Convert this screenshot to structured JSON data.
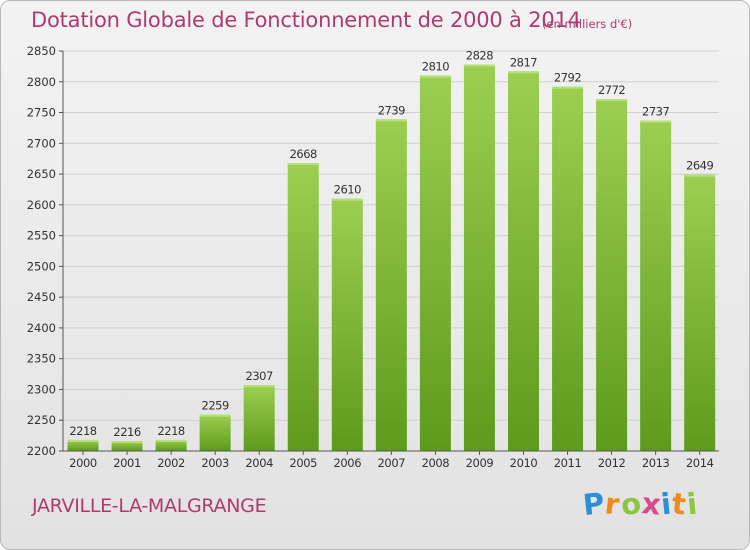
{
  "title": "Dotation Globale de Fonctionnement de 2000 à 2014",
  "subtitle": "(en milliers d'€)",
  "commune": "JARVILLE-LA-MALGRANGE",
  "brand": {
    "letters": [
      "P",
      "r",
      "o",
      "x",
      "i",
      "t",
      "i"
    ],
    "colors": [
      "#2f8fd4",
      "#f08a1c",
      "#8cc63f",
      "#d94a8c",
      "#2f8fd4",
      "#f08a1c",
      "#8cc63f"
    ]
  },
  "colors": {
    "bar_top": "#9ccf50",
    "bar_bottom": "#5e9a1c",
    "title": "#b03a6e"
  },
  "chart_data": {
    "type": "bar",
    "title": "Dotation Globale de Fonctionnement de 2000 à 2014",
    "subtitle": "(en milliers d'€)",
    "xlabel": "",
    "ylabel": "",
    "categories": [
      "2000",
      "2001",
      "2002",
      "2003",
      "2004",
      "2005",
      "2006",
      "2007",
      "2008",
      "2009",
      "2010",
      "2011",
      "2012",
      "2013",
      "2014"
    ],
    "values": [
      2218,
      2216,
      2218,
      2259,
      2307,
      2668,
      2610,
      2739,
      2810,
      2828,
      2817,
      2792,
      2772,
      2737,
      2649
    ],
    "ylim": [
      2200,
      2850
    ],
    "yticks": [
      2200,
      2250,
      2300,
      2350,
      2400,
      2450,
      2500,
      2550,
      2600,
      2650,
      2700,
      2750,
      2800,
      2850
    ],
    "grid": true,
    "legend": "none"
  }
}
